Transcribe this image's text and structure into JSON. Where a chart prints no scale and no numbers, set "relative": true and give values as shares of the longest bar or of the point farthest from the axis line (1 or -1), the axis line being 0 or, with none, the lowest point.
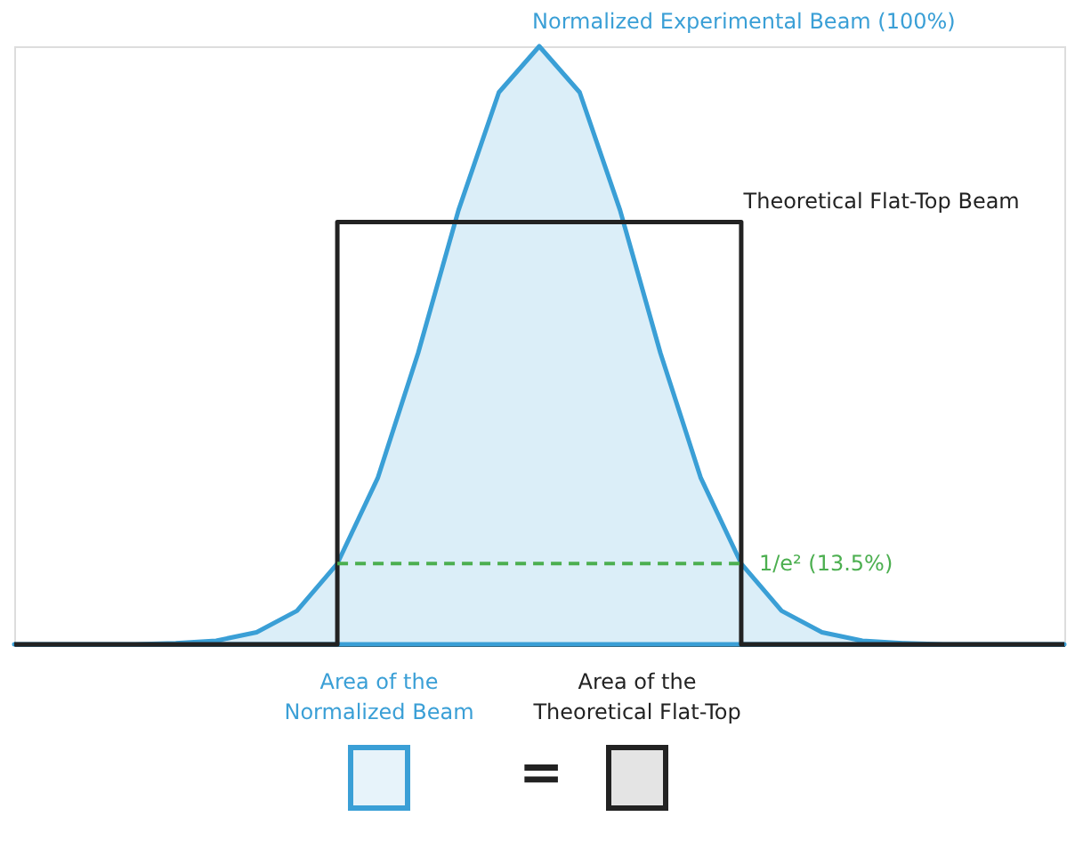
{
  "chart_data": {
    "type": "area",
    "relative": true,
    "grid": false,
    "categories": [
      null,
      null,
      null,
      null,
      null,
      null,
      null,
      null,
      null,
      null,
      null,
      null,
      null,
      null,
      null,
      null,
      null,
      null,
      null,
      null,
      null,
      null,
      null,
      null,
      null,
      null,
      null
    ],
    "series": [
      {
        "name": "Normalized Experimental Beam (100%)",
        "color": "#3a9fd6",
        "values": [
          0,
          0,
          0,
          0,
          0.002,
          0.006,
          0.02,
          0.056,
          0.135,
          0.278,
          0.487,
          0.726,
          0.923,
          1,
          0.923,
          0.726,
          0.487,
          0.278,
          0.135,
          0.056,
          0.02,
          0.006,
          0.002,
          0,
          0,
          0,
          0
        ]
      },
      {
        "name": "Theoretical Flat-Top Beam",
        "type": "step",
        "color": "#222222",
        "values": [
          0,
          0,
          0,
          0,
          0,
          0,
          0,
          0,
          0.706,
          0.706,
          0.706,
          0.706,
          0.706,
          0.706,
          0.706,
          0.706,
          0.706,
          0.706,
          0,
          0,
          0,
          0,
          0,
          0,
          0,
          0,
          0
        ]
      },
      {
        "name": "1/e² (13.5%)",
        "type": "line",
        "line_style": "dashed",
        "color": "#4caf50",
        "values": [
          null,
          null,
          null,
          null,
          null,
          null,
          null,
          null,
          0.135,
          0.135,
          0.135,
          0.135,
          0.135,
          0.135,
          0.135,
          0.135,
          0.135,
          0.135,
          0.135,
          null,
          null,
          null,
          null,
          null,
          null,
          null,
          null
        ]
      }
    ],
    "annotations": [
      "Area of the\nNormalized Beam",
      "=",
      "Area of the\nTheoretical Flat-Top"
    ]
  }
}
